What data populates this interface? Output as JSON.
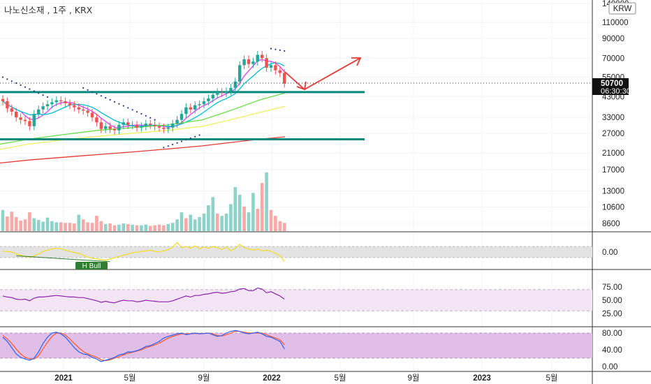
{
  "header": {
    "symbol_title": "나노신소재 , 1주 , KRX",
    "currency": "KRW"
  },
  "colors": {
    "up": "#26a69a",
    "down": "#ef5350",
    "ma_short": "#e040fb",
    "ma_mid": "#00bcd4",
    "ma_long": "#66dd44",
    "ma_yellow": "#f0f060",
    "ma_red": "#e53935",
    "level_line": "#00897b",
    "arrow": "#e53935",
    "psar": "#1e3a8a",
    "wave": "#f5dd28",
    "rsi": "#8e24aa",
    "stoch_k": "#2962ff",
    "stoch_d": "#ff5722",
    "band": "#f3e5f5"
  },
  "price_labels": {
    "last_price": "50700",
    "countdown": "06:30:30"
  },
  "annotations": {
    "divergence_label": "H Bull"
  },
  "panes": {
    "osc_ticks": [
      "0.00"
    ],
    "rsi_ticks": [
      "75.00",
      "50.00",
      "25.00"
    ],
    "stoch_ticks": [
      "80.00",
      "40.00",
      "0.00"
    ]
  },
  "chart_data": {
    "type": "candlestick",
    "title": "나노신소재 , 1주 , KRX",
    "y_scale": "log",
    "y_ticks": [
      140000,
      110000,
      90000,
      70000,
      55000,
      43000,
      33000,
      27000,
      21000,
      17000,
      13000,
      10600,
      8600
    ],
    "x_ticks": [
      "2021",
      "5월",
      "9월",
      "2022",
      "5월",
      "9월",
      "2023",
      "5월"
    ],
    "last_price": 50700,
    "horizontal_levels": [
      45500,
      25000
    ],
    "weekly_closes": [
      40500,
      37000,
      35500,
      33000,
      32000,
      31500,
      29500,
      34500,
      36500,
      38000,
      39000,
      40000,
      41000,
      40500,
      39500,
      38500,
      37500,
      36500,
      36000,
      35000,
      33000,
      31000,
      28500,
      29500,
      28500,
      28000,
      30000,
      31000,
      30000,
      30000,
      29000,
      29500,
      30500,
      30000,
      29500,
      29000,
      28500,
      29000,
      30500,
      32000,
      34500,
      37500,
      36500,
      38500,
      39000,
      40500,
      42000,
      44000,
      45500,
      45000,
      46000,
      48000,
      52000,
      64000,
      69000,
      65000,
      67000,
      73000,
      70000,
      62000,
      64000,
      60000,
      58000,
      50700
    ],
    "volume": [
      {
        "v": 0.36,
        "up": true
      },
      {
        "v": 0.25,
        "up": false
      },
      {
        "v": 0.33,
        "up": false
      },
      {
        "v": 0.24,
        "up": false
      },
      {
        "v": 0.18,
        "up": false
      },
      {
        "v": 0.2,
        "up": false
      },
      {
        "v": 0.32,
        "up": false
      },
      {
        "v": 0.22,
        "up": true
      },
      {
        "v": 0.19,
        "up": true
      },
      {
        "v": 0.16,
        "up": true
      },
      {
        "v": 0.23,
        "up": true
      },
      {
        "v": 0.17,
        "up": true
      },
      {
        "v": 0.15,
        "up": true
      },
      {
        "v": 0.15,
        "up": false
      },
      {
        "v": 0.14,
        "up": false
      },
      {
        "v": 0.14,
        "up": false
      },
      {
        "v": 0.13,
        "up": false
      },
      {
        "v": 0.28,
        "up": true
      },
      {
        "v": 0.2,
        "up": false
      },
      {
        "v": 0.15,
        "up": false
      },
      {
        "v": 0.14,
        "up": false
      },
      {
        "v": 0.26,
        "up": false
      },
      {
        "v": 0.17,
        "up": false
      },
      {
        "v": 0.12,
        "up": true
      },
      {
        "v": 0.13,
        "up": false
      },
      {
        "v": 0.1,
        "up": false
      },
      {
        "v": 0.11,
        "up": true
      },
      {
        "v": 0.13,
        "up": true
      },
      {
        "v": 0.12,
        "up": false
      },
      {
        "v": 0.11,
        "up": true
      },
      {
        "v": 0.1,
        "up": false
      },
      {
        "v": 0.1,
        "up": true
      },
      {
        "v": 0.11,
        "up": true
      },
      {
        "v": 0.09,
        "up": false
      },
      {
        "v": 0.1,
        "up": false
      },
      {
        "v": 0.11,
        "up": false
      },
      {
        "v": 0.1,
        "up": false
      },
      {
        "v": 0.12,
        "up": true
      },
      {
        "v": 0.14,
        "up": true
      },
      {
        "v": 0.2,
        "up": true
      },
      {
        "v": 0.32,
        "up": true
      },
      {
        "v": 0.22,
        "up": false
      },
      {
        "v": 0.28,
        "up": true
      },
      {
        "v": 0.2,
        "up": true
      },
      {
        "v": 0.24,
        "up": true
      },
      {
        "v": 0.3,
        "up": true
      },
      {
        "v": 0.44,
        "up": true
      },
      {
        "v": 0.58,
        "up": true
      },
      {
        "v": 0.3,
        "up": false
      },
      {
        "v": 0.26,
        "up": true
      },
      {
        "v": 0.3,
        "up": true
      },
      {
        "v": 0.46,
        "up": true
      },
      {
        "v": 0.75,
        "up": true
      },
      {
        "v": 0.62,
        "up": true
      },
      {
        "v": 0.42,
        "up": false
      },
      {
        "v": 0.32,
        "up": true
      },
      {
        "v": 0.65,
        "up": true
      },
      {
        "v": 0.38,
        "up": false
      },
      {
        "v": 0.82,
        "up": false
      },
      {
        "v": 1.0,
        "up": true
      },
      {
        "v": 0.36,
        "up": false
      },
      {
        "v": 0.26,
        "up": false
      },
      {
        "v": 0.17,
        "up": false
      },
      {
        "v": 0.14,
        "up": false
      }
    ],
    "rsi": [
      58,
      56,
      55,
      52,
      51,
      52,
      49,
      54,
      56,
      56,
      57,
      58,
      59,
      58,
      57,
      56,
      56,
      55,
      55,
      53,
      51,
      49,
      46,
      48,
      46,
      45,
      48,
      50,
      49,
      49,
      47,
      48,
      50,
      49,
      48,
      47,
      47,
      47,
      49,
      52,
      55,
      58,
      56,
      59,
      59,
      61,
      62,
      64,
      65,
      63,
      64,
      66,
      67,
      71,
      72,
      68,
      68,
      73,
      71,
      64,
      66,
      62,
      58,
      52
    ],
    "stoch_k": [
      70,
      60,
      45,
      30,
      22,
      18,
      15,
      20,
      35,
      55,
      70,
      80,
      82,
      78,
      70,
      58,
      45,
      35,
      30,
      28,
      22,
      18,
      12,
      15,
      18,
      22,
      28,
      30,
      35,
      35,
      38,
      42,
      48,
      50,
      55,
      60,
      68,
      72,
      75,
      78,
      80,
      76,
      78,
      80,
      78,
      79,
      80,
      76,
      72,
      74,
      80,
      84,
      86,
      84,
      80,
      78,
      80,
      82,
      78,
      72,
      70,
      65,
      60,
      42
    ],
    "stoch_d": [
      74,
      66,
      55,
      42,
      30,
      22,
      18,
      18,
      26,
      42,
      58,
      72,
      80,
      80,
      75,
      66,
      55,
      45,
      36,
      30,
      26,
      22,
      16,
      14,
      16,
      20,
      24,
      28,
      32,
      34,
      37,
      40,
      45,
      48,
      52,
      56,
      62,
      68,
      72,
      75,
      78,
      78,
      78,
      79,
      79,
      79,
      80,
      78,
      74,
      73,
      76,
      80,
      84,
      84,
      82,
      80,
      80,
      80,
      80,
      76,
      72,
      68,
      64,
      52
    ],
    "oscillator": [
      0.1,
      0.08,
      0.0,
      -0.3,
      -0.5,
      -0.7,
      -0.8,
      -0.6,
      -0.3,
      0.1,
      0.3,
      0.5,
      0.6,
      0.5,
      0.3,
      0.1,
      -0.1,
      -0.2,
      -0.5,
      -0.8,
      -1.0,
      -1.1,
      -1.2,
      -1.3,
      -1.1,
      -0.9,
      -0.7,
      -0.5,
      -0.3,
      -0.1,
      0.0,
      0.1,
      0.2,
      0.3,
      0.1,
      0.0,
      0.2,
      0.4,
      0.8,
      1.5,
      0.7,
      0.9,
      0.6,
      1.0,
      0.5,
      0.8,
      0.6,
      0.9,
      0.7,
      0.4,
      0.8,
      0.2,
      0.6,
      1.2,
      0.7,
      0.5,
      0.3,
      0.5,
      0.2,
      0.3,
      0.1,
      -0.2,
      -0.6,
      -1.5
    ]
  }
}
